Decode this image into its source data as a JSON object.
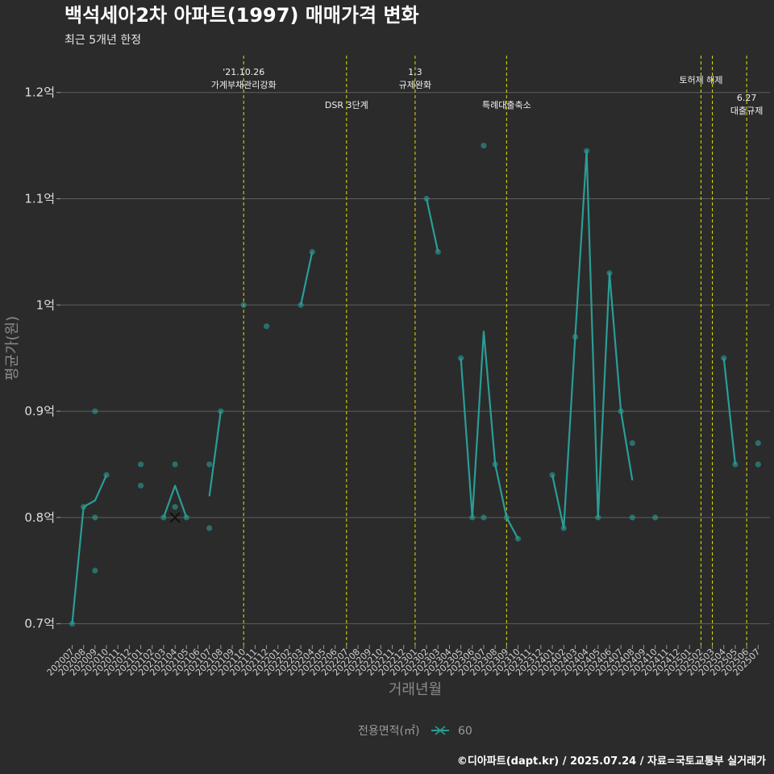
{
  "chart_data": {
    "type": "line",
    "title": "백석세아2차 아파트(1997) 매매가격 변화",
    "subtitle": "최근 5개년 한정",
    "xlabel": "거래년월",
    "ylabel": "평균가(원)",
    "caption": "©디아파트(dapt.kr) / 2025.07.24 / 자료=국토교통부 실거래가",
    "legend": {
      "title": "전용면적(㎡)",
      "label": "60",
      "color": "#2a9d96"
    },
    "ylim": [
      0.68,
      1.24
    ],
    "y_ticks": [
      {
        "value": 0.7,
        "label": "0.7억"
      },
      {
        "value": 0.8,
        "label": "0.8억"
      },
      {
        "value": 0.9,
        "label": "0.9억"
      },
      {
        "value": 1.0,
        "label": "1억"
      },
      {
        "value": 1.1,
        "label": "1.1억"
      },
      {
        "value": 1.2,
        "label": "1.2억"
      }
    ],
    "categories": [
      "202007",
      "202008",
      "202009",
      "202010",
      "202011",
      "202012",
      "202101",
      "202102",
      "202103",
      "202104",
      "202105",
      "202106",
      "202107",
      "202108",
      "202109",
      "202110",
      "202111",
      "202112",
      "202201",
      "202202",
      "202203",
      "202204",
      "202205",
      "202206",
      "202207",
      "202208",
      "202209",
      "202210",
      "202211",
      "202212",
      "202301",
      "202302",
      "202303",
      "202304",
      "202305",
      "202306",
      "202307",
      "202308",
      "202309",
      "202310",
      "202311",
      "202312",
      "202401",
      "202402",
      "202403",
      "202404",
      "202405",
      "202406",
      "202407",
      "202408",
      "202409",
      "202410",
      "202411",
      "202412",
      "202501",
      "202502",
      "202503",
      "202504",
      "202505",
      "202506",
      "202507"
    ],
    "series": [
      {
        "name": "60",
        "color": "#2a9d96",
        "line_segments": [
          [
            [
              "202007",
              0.7
            ],
            [
              "202008",
              0.81
            ],
            [
              "202009",
              0.816
            ],
            [
              "202010",
              0.84
            ]
          ],
          [
            [
              "202103",
              0.8
            ],
            [
              "202104",
              0.83
            ],
            [
              "202105",
              0.8
            ]
          ],
          [
            [
              "202107",
              0.82
            ],
            [
              "202108",
              0.9
            ]
          ],
          [
            [
              "202203",
              1.0
            ],
            [
              "202204",
              1.05
            ]
          ],
          [
            [
              "202302",
              1.1
            ],
            [
              "202303",
              1.05
            ]
          ],
          [
            [
              "202305",
              0.95
            ],
            [
              "202306",
              0.8
            ],
            [
              "202307",
              0.975
            ],
            [
              "202308",
              0.85
            ],
            [
              "202309",
              0.8
            ],
            [
              "202310",
              0.78
            ]
          ],
          [
            [
              "202401",
              0.84
            ],
            [
              "202402",
              0.79
            ],
            [
              "202403",
              0.97
            ],
            [
              "202404",
              1.145
            ],
            [
              "202405",
              0.8
            ],
            [
              "202406",
              1.03
            ],
            [
              "202407",
              0.9
            ],
            [
              "202408",
              0.835
            ]
          ],
          [
            [
              "202504",
              0.95
            ],
            [
              "202505",
              0.85
            ]
          ]
        ],
        "points": [
          [
            "202007",
            0.7
          ],
          [
            "202008",
            0.81
          ],
          [
            "202009",
            0.9
          ],
          [
            "202009",
            0.8
          ],
          [
            "202009",
            0.75
          ],
          [
            "202010",
            0.84
          ],
          [
            "202101",
            0.85
          ],
          [
            "202101",
            0.83
          ],
          [
            "202103",
            0.8
          ],
          [
            "202104",
            0.85
          ],
          [
            "202104",
            0.81
          ],
          [
            "202105",
            0.8
          ],
          [
            "202107",
            0.85
          ],
          [
            "202107",
            0.79
          ],
          [
            "202108",
            0.9
          ],
          [
            "202110",
            1.0
          ],
          [
            "202112",
            0.98
          ],
          [
            "202203",
            1.0
          ],
          [
            "202204",
            1.05
          ],
          [
            "202302",
            1.1
          ],
          [
            "202303",
            1.05
          ],
          [
            "202305",
            0.95
          ],
          [
            "202306",
            0.8
          ],
          [
            "202307",
            1.15
          ],
          [
            "202307",
            0.8
          ],
          [
            "202308",
            0.85
          ],
          [
            "202309",
            0.8
          ],
          [
            "202310",
            0.78
          ],
          [
            "202401",
            0.84
          ],
          [
            "202402",
            0.79
          ],
          [
            "202403",
            0.97
          ],
          [
            "202404",
            1.145
          ],
          [
            "202405",
            0.8
          ],
          [
            "202406",
            1.03
          ],
          [
            "202407",
            0.9
          ],
          [
            "202408",
            0.87
          ],
          [
            "202408",
            0.8
          ],
          [
            "202410",
            0.8
          ],
          [
            "202504",
            0.95
          ],
          [
            "202505",
            0.85
          ],
          [
            "202507",
            0.87
          ],
          [
            "202507",
            0.85
          ]
        ],
        "latest_marker": [
          "202104",
          0.8
        ]
      }
    ],
    "events": [
      {
        "x": "202110",
        "lines": [
          "'21.10.26",
          "가계부채관리강화"
        ],
        "row": "top"
      },
      {
        "x": "202207",
        "lines": [
          "DSR 3단계"
        ],
        "row": "low"
      },
      {
        "x": "202301",
        "lines": [
          "1.3",
          "규제완화"
        ],
        "row": "top"
      },
      {
        "x": "202309",
        "lines": [
          "특례대출축소"
        ],
        "row": "low"
      },
      {
        "x": "202502",
        "lines": [
          "토허제 해제"
        ],
        "row": "mid"
      },
      {
        "x": "202503",
        "lines": [],
        "row": "mid"
      },
      {
        "x": "202506",
        "lines": [
          "6.27",
          "대출규제"
        ],
        "row": "right"
      }
    ]
  }
}
